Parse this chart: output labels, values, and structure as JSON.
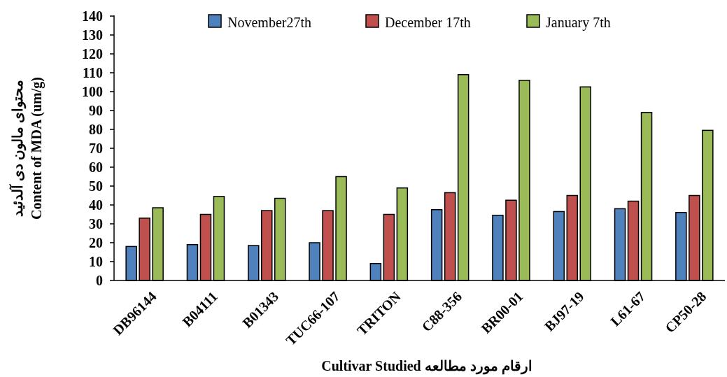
{
  "chart_data": {
    "type": "bar",
    "xlabel": "Cultivar Studied  ارقام مورد مطالعه",
    "ylabel": "محتوای مالون دی آلدئید\nContent of MDA (um/g)",
    "categories": [
      "DB96144",
      "B04111",
      "B01343",
      "TUC66-107",
      "TRITON",
      "C88-356",
      "BR00-01",
      "BJ97-19",
      "L61-67",
      "CP50-28"
    ],
    "series": [
      {
        "name": "November27th",
        "color": "#4f81bd",
        "values": [
          18,
          19,
          18.5,
          20,
          9,
          37.5,
          34.5,
          36.5,
          38,
          36
        ]
      },
      {
        "name": "December 17th",
        "color": "#c0504d",
        "values": [
          33,
          35,
          37,
          37,
          35,
          46.5,
          42.5,
          45,
          42,
          45
        ]
      },
      {
        "name": "January 7th",
        "color": "#9bbb59",
        "values": [
          38.5,
          44.5,
          43.5,
          55,
          49,
          109,
          106,
          102.5,
          89,
          79.5
        ]
      }
    ],
    "ylim": [
      0,
      140
    ],
    "yticks": [
      0,
      10,
      20,
      30,
      40,
      50,
      60,
      70,
      80,
      90,
      100,
      110,
      120,
      130,
      140
    ],
    "grid": false,
    "legend": "top"
  }
}
